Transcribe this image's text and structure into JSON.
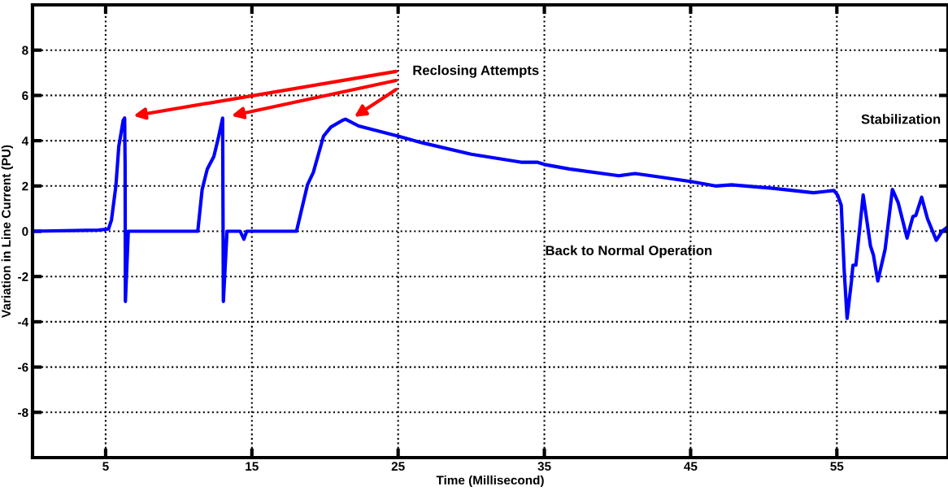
{
  "chart_data": {
    "type": "line",
    "xlabel": "Time (Millisecond)",
    "ylabel": "Variation in Line Current (PU)",
    "x": [
      0,
      4.5,
      5.2,
      5.4,
      5.7,
      5.9,
      6.2,
      6.3,
      6.33,
      6.35,
      6.55,
      11.3,
      11.6,
      11.95,
      12.4,
      12.7,
      13.0,
      13.05,
      13.3,
      14.2,
      14.45,
      14.65,
      18.05,
      18.8,
      19.2,
      19.9,
      20.4,
      21.2,
      21.4,
      22.3,
      25,
      26.7,
      30,
      33.4,
      34.5,
      35,
      36.7,
      40.1,
      41.2,
      42.3,
      45,
      46.7,
      47.8,
      50.6,
      53.4,
      54.8,
      55.05,
      55.3,
      55.5,
      55.7,
      56.0,
      56.1,
      56.3,
      56.8,
      57.3,
      57.5,
      57.8,
      58.3,
      58.8,
      59.2,
      59.8,
      60.2,
      60.4,
      60.8,
      61.2,
      61.8,
      62.2,
      62.6
    ],
    "series": [
      {
        "color": "#0000ff",
        "values": [
          0,
          0.05,
          0.1,
          0.5,
          2.0,
          3.75,
          4.9,
          5.0,
          3.0,
          -3.1,
          0,
          0,
          1.85,
          2.75,
          3.3,
          4.1,
          5.0,
          -3.1,
          0,
          0,
          -0.35,
          0,
          0,
          2.05,
          2.6,
          4.2,
          4.6,
          4.9,
          4.95,
          4.65,
          4.2,
          3.9,
          3.4,
          3.05,
          3.05,
          2.95,
          2.75,
          2.45,
          2.55,
          2.45,
          2.2,
          2.0,
          2.05,
          1.9,
          1.7,
          1.8,
          1.6,
          1.15,
          -1.7,
          -3.85,
          -2.2,
          -1.5,
          -1.5,
          1.6,
          -0.65,
          -1.05,
          -2.2,
          -0.8,
          1.85,
          1.25,
          -0.3,
          0.65,
          0.7,
          1.5,
          0.55,
          -0.4,
          0,
          0.2
        ]
      }
    ],
    "xlim": [
      0,
      62.6
    ],
    "ylim": [
      -10,
      10
    ],
    "xticks": [
      5,
      15,
      25,
      35,
      45,
      55
    ],
    "yticks": [
      -8,
      -6,
      -4,
      -2,
      0,
      2,
      4,
      6,
      8
    ],
    "grid": true,
    "line_style": "solid",
    "marker": "none",
    "annotations": [
      "Reclosing Attempts",
      "Stabilization",
      "Back to Normal Operation"
    ]
  }
}
